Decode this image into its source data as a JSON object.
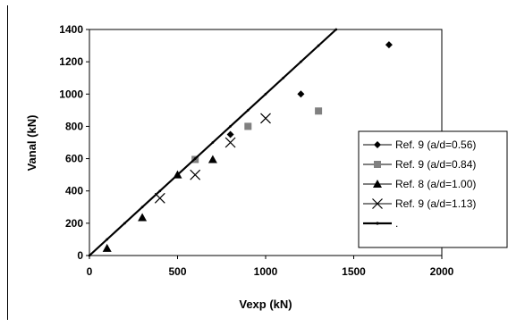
{
  "chart_data": {
    "type": "scatter",
    "xlabel": "Vexp (kN)",
    "ylabel": "Vanal (kN)",
    "xlim": [
      0,
      2000
    ],
    "ylim": [
      0,
      1400
    ],
    "xticks": [
      "0",
      "500",
      "1000",
      "1500",
      "2000"
    ],
    "yticks": [
      "0",
      "200",
      "400",
      "600",
      "800",
      "1000",
      "1200",
      "1400"
    ],
    "grid": false,
    "legend_position": "right",
    "series": [
      {
        "name": "Ref. 9 (a/d=0.56)",
        "marker": "diamond-icon",
        "color": "#000000",
        "points": [
          {
            "x": 1200,
            "y": 1000
          },
          {
            "x": 1700,
            "y": 1305
          },
          {
            "x": 800,
            "y": 750
          }
        ]
      },
      {
        "name": "Ref. 9 (a/d=0.84)",
        "marker": "square-icon",
        "color": "#808080",
        "points": [
          {
            "x": 600,
            "y": 595
          },
          {
            "x": 900,
            "y": 800
          },
          {
            "x": 1300,
            "y": 895
          }
        ]
      },
      {
        "name": "Ref. 8 (a/d=1.00)",
        "marker": "triangle-icon",
        "color": "#000000",
        "points": [
          {
            "x": 100,
            "y": 45
          },
          {
            "x": 300,
            "y": 235
          },
          {
            "x": 500,
            "y": 500
          },
          {
            "x": 700,
            "y": 595
          }
        ]
      },
      {
        "name": "Ref. 9 (a/d=1.13)",
        "marker": "cross-icon",
        "color": "#000000",
        "points": [
          {
            "x": 400,
            "y": 355
          },
          {
            "x": 600,
            "y": 500
          },
          {
            "x": 800,
            "y": 700
          },
          {
            "x": 1000,
            "y": 850
          }
        ]
      },
      {
        "name": ".",
        "marker": "line-icon",
        "color": "#000000",
        "is_line": true,
        "points": [
          {
            "x": 0,
            "y": 0
          },
          {
            "x": 1400,
            "y": 1400
          }
        ]
      }
    ]
  }
}
